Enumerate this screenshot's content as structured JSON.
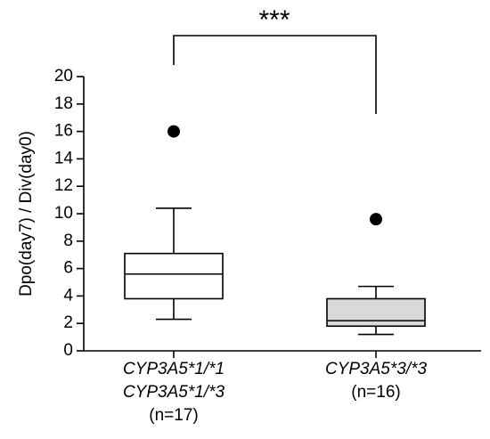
{
  "chart_data": {
    "type": "box",
    "y_label": "Dpo(day7) / Div(day0)",
    "annotation": "***",
    "categories": [
      [
        "CYP3A5*1/*1",
        "CYP3A5*1/*3",
        "(n=17)"
      ],
      [
        "CYP3A5*3/*3",
        "(n=16)"
      ]
    ],
    "boxes": [
      {
        "low": 2.3,
        "q1": 3.8,
        "median": 5.6,
        "q3": 7.1,
        "high": 10.4,
        "outliers": [
          16.0
        ],
        "color": "#ffffff"
      },
      {
        "low": 1.2,
        "q1": 1.8,
        "median": 2.2,
        "q3": 3.8,
        "high": 4.7,
        "outliers": [
          9.6
        ],
        "color": "#d9d9d9"
      }
    ],
    "ylim": [
      0,
      20
    ],
    "yticks": [
      0,
      2,
      4,
      6,
      8,
      10,
      12,
      14,
      16,
      18,
      20
    ],
    "grid": false
  }
}
